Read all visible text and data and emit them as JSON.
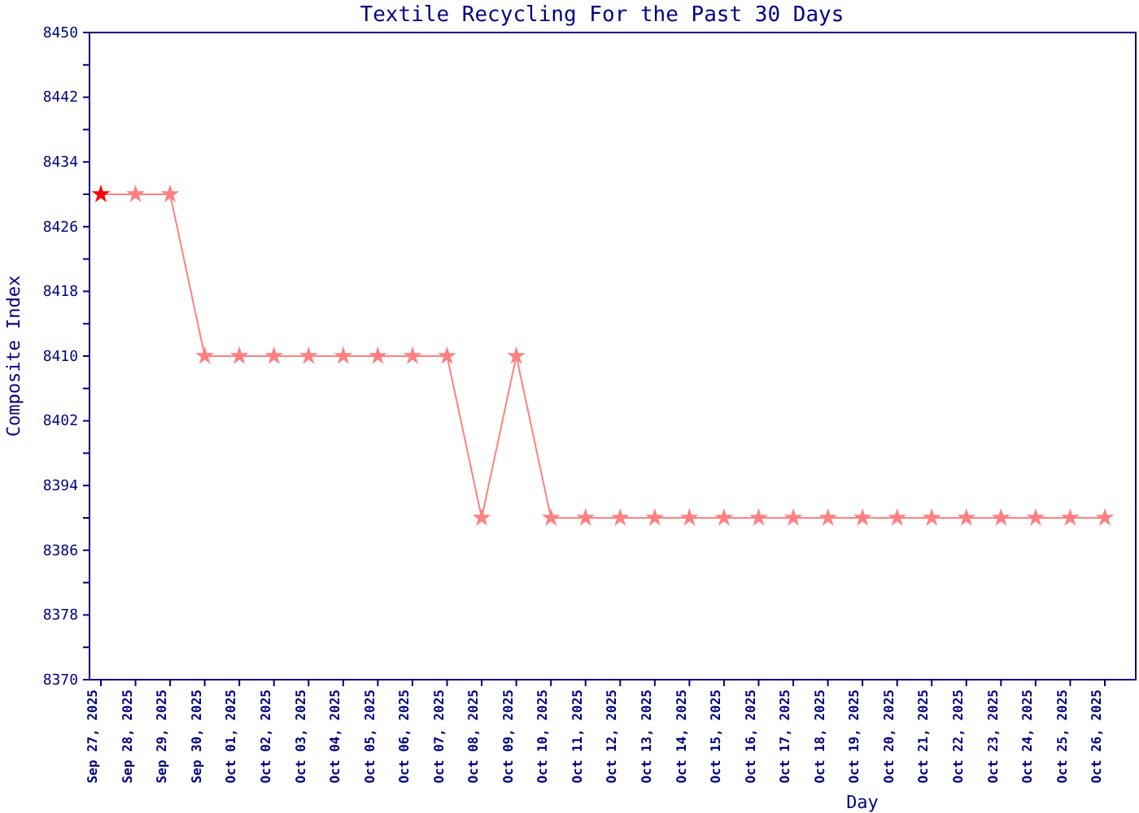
{
  "chart_data": {
    "type": "line",
    "title": "Textile Recycling For the Past 30 Days",
    "xlabel": "Day",
    "ylabel": "Composite Index",
    "categories": [
      "Sep 27, 2025",
      "Sep 28, 2025",
      "Sep 29, 2025",
      "Sep 30, 2025",
      "Oct 01, 2025",
      "Oct 02, 2025",
      "Oct 03, 2025",
      "Oct 04, 2025",
      "Oct 05, 2025",
      "Oct 06, 2025",
      "Oct 07, 2025",
      "Oct 08, 2025",
      "Oct 09, 2025",
      "Oct 10, 2025",
      "Oct 11, 2025",
      "Oct 12, 2025",
      "Oct 13, 2025",
      "Oct 14, 2025",
      "Oct 15, 2025",
      "Oct 16, 2025",
      "Oct 17, 2025",
      "Oct 18, 2025",
      "Oct 19, 2025",
      "Oct 20, 2025",
      "Oct 21, 2025",
      "Oct 22, 2025",
      "Oct 23, 2025",
      "Oct 24, 2025",
      "Oct 25, 2025",
      "Oct 26, 2025"
    ],
    "series": [
      {
        "color": "#ff8080",
        "colors": [
          "#ff0000",
          "#ff8080",
          "#ff8080",
          "#ff8080",
          "#ff8080",
          "#ff8080",
          "#ff8080",
          "#ff8080",
          "#ff8080",
          "#ff8080",
          "#ff8080",
          "#ff8080",
          "#ff8080",
          "#ff8080",
          "#ff8080",
          "#ff8080",
          "#ff8080",
          "#ff8080",
          "#ff8080",
          "#ff8080",
          "#ff8080",
          "#ff8080",
          "#ff8080",
          "#ff8080",
          "#ff8080",
          "#ff8080",
          "#ff8080",
          "#ff8080",
          "#ff8080",
          "#ff8080"
        ],
        "values": [
          8430,
          8430,
          8430,
          8410,
          8410,
          8410,
          8410,
          8410,
          8410,
          8410,
          8410,
          8390,
          8410,
          8390,
          8390,
          8390,
          8390,
          8390,
          8390,
          8390,
          8390,
          8390,
          8390,
          8390,
          8390,
          8390,
          8390,
          8390,
          8390,
          8390
        ]
      }
    ],
    "ylim": [
      8370,
      8450
    ],
    "yticks": [
      8370,
      {
        "value": 8374,
        "label": null
      },
      8378,
      {
        "value": 8382,
        "label": null
      },
      8386,
      {
        "value": 8390,
        "label": null
      },
      8394,
      {
        "value": 8398,
        "label": null
      },
      8402,
      {
        "value": 8406,
        "label": null
      },
      8410,
      {
        "value": 8414,
        "label": null
      },
      8418,
      {
        "value": 8422,
        "label": null
      },
      8426,
      {
        "value": 8430,
        "label": null
      },
      8434,
      {
        "value": 8438,
        "label": null
      },
      8442,
      {
        "value": 8446,
        "label": null
      },
      8450
    ],
    "grid": false,
    "marker": "star",
    "line_style": "solid"
  }
}
